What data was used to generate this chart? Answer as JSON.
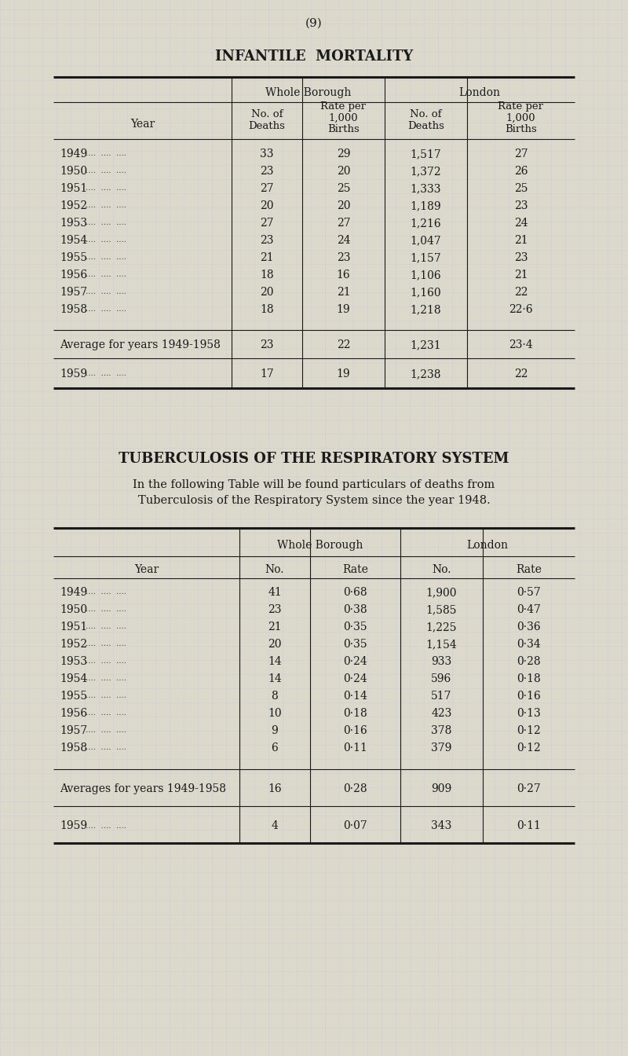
{
  "page_number": "(9)",
  "background_color": "#ddd8cc",
  "text_color": "#1a1a1a",
  "section1_title": "INFANTILE  MORTALITY",
  "table1": {
    "data_rows": [
      [
        "1949",
        "33",
        "29",
        "1,517",
        "27"
      ],
      [
        "1950",
        "23",
        "20",
        "1,372",
        "26"
      ],
      [
        "1951",
        "27",
        "25",
        "1,333",
        "25"
      ],
      [
        "1952",
        "20",
        "20",
        "1,189",
        "23"
      ],
      [
        "1953",
        "27",
        "27",
        "1,216",
        "24"
      ],
      [
        "1954",
        "23",
        "24",
        "1,047",
        "21"
      ],
      [
        "1955",
        "21",
        "23",
        "1,157",
        "23"
      ],
      [
        "1956",
        "18",
        "16",
        "1,106",
        "21"
      ],
      [
        "1957",
        "20",
        "21",
        "1,160",
        "22"
      ],
      [
        "1958",
        "18",
        "19",
        "1,218",
        "22·6"
      ]
    ],
    "avg_row": [
      "Average for years 1949-1958",
      "23",
      "22",
      "1,231",
      "23·4"
    ],
    "last_row": [
      "1959",
      "17",
      "19",
      "1,238",
      "22"
    ]
  },
  "section2_title": "TUBERCULOSIS OF THE RESPIRATORY SYSTEM",
  "section2_text1": "In the following Table will be found particulars of deaths from",
  "section2_text2": "Tuberculosis of the Respiratory System since the year 1948.",
  "table2": {
    "data_rows": [
      [
        "1949",
        "41",
        "0·68",
        "1,900",
        "0·57"
      ],
      [
        "1950",
        "23",
        "0·38",
        "1,585",
        "0·47"
      ],
      [
        "1951",
        "21",
        "0·35",
        "1,225",
        "0·36"
      ],
      [
        "1952",
        "20",
        "0·35",
        "1,154",
        "0·34"
      ],
      [
        "1953",
        "14",
        "0·24",
        "933",
        "0·28"
      ],
      [
        "1954",
        "14",
        "0·24",
        "596",
        "0·18"
      ],
      [
        "1955",
        "8",
        "0·14",
        "517",
        "0·16"
      ],
      [
        "1956",
        "10",
        "0·18",
        "423",
        "0·13"
      ],
      [
        "1957",
        "9",
        "0·16",
        "378",
        "0·12"
      ],
      [
        "1958",
        "6",
        "0·11",
        "379",
        "0·12"
      ]
    ],
    "avg_row": [
      "Averages for years 1949-1958",
      "16",
      "0·28",
      "909",
      "0·27"
    ],
    "last_row": [
      "1959",
      "4",
      "0·07",
      "343",
      "0·11"
    ]
  }
}
